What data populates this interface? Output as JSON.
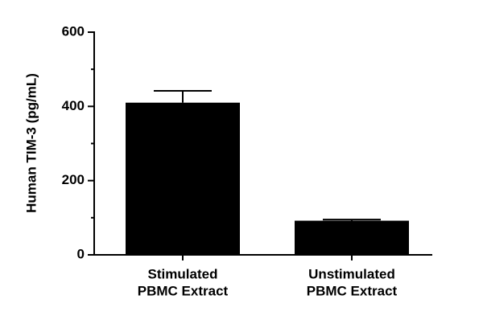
{
  "chart_data": {
    "type": "bar",
    "y_label": "Human TIM-3 (pg/mL)",
    "categories": [
      [
        "Stimulated",
        "PBMC Extract"
      ],
      [
        "Unstimulated",
        "PBMC Extract"
      ]
    ],
    "values": [
      410,
      92
    ],
    "errors": [
      32,
      3
    ],
    "color": "#000000",
    "ylim": [
      0,
      600
    ],
    "yticks": [
      0,
      200,
      400,
      600
    ],
    "minor_yticks": [
      100,
      300,
      500
    ]
  }
}
